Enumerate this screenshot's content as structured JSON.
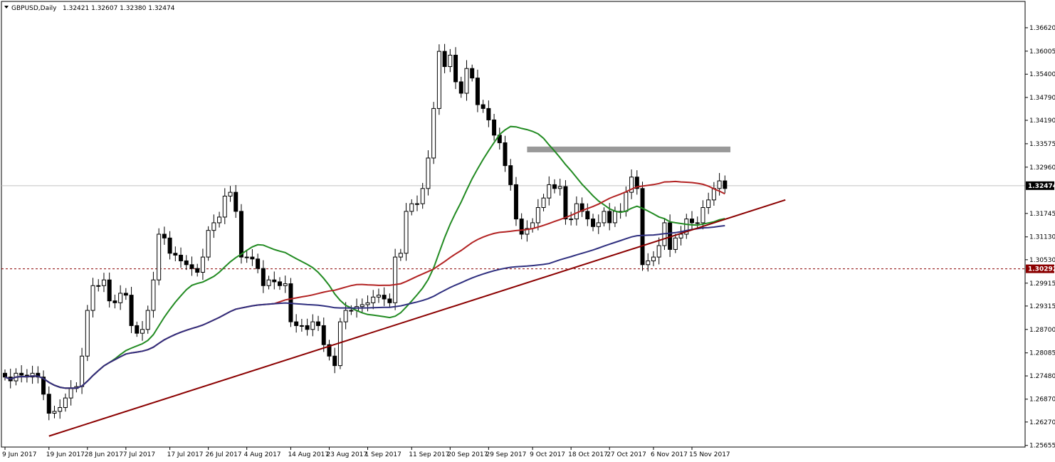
{
  "chart_data": {
    "type": "candlestick",
    "symbol_label": "GBPUSD,Daily",
    "ohlc_label": "1.32421 1.32607 1.32380 1.32474",
    "ylim": [
      1.2565,
      1.3675
    ],
    "grid": false,
    "y_ticks": [
      "1.36620",
      "1.36005",
      "1.35400",
      "1.34790",
      "1.34190",
      "1.33575",
      "1.32960",
      "1.32350",
      "1.31745",
      "1.31130",
      "1.30530",
      "1.29915",
      "1.29315",
      "1.28700",
      "1.28085",
      "1.27480",
      "1.26870",
      "1.26270",
      "1.25655"
    ],
    "x_ticks": [
      {
        "index": 0,
        "label": "9 Jun 2017"
      },
      {
        "index": 8,
        "label": "19 Jun 2017"
      },
      {
        "index": 15,
        "label": "28 Jun 2017"
      },
      {
        "index": 22,
        "label": "7 Jul 2017"
      },
      {
        "index": 30,
        "label": "17 Jul 2017"
      },
      {
        "index": 37,
        "label": "26 Jul 2017"
      },
      {
        "index": 44,
        "label": "4 Aug 2017"
      },
      {
        "index": 52,
        "label": "14 Aug 2017"
      },
      {
        "index": 59,
        "label": "23 Aug 2017"
      },
      {
        "index": 66,
        "label": "1 Sep 2017"
      },
      {
        "index": 74,
        "label": "11 Sep 2017"
      },
      {
        "index": 81,
        "label": "20 Sep 2017"
      },
      {
        "index": 88,
        "label": "29 Sep 2017"
      },
      {
        "index": 96,
        "label": "9 Oct 2017"
      },
      {
        "index": 103,
        "label": "18 Oct 2017"
      },
      {
        "index": 110,
        "label": "27 Oct 2017"
      },
      {
        "index": 118,
        "label": "6 Nov 2017"
      },
      {
        "index": 125,
        "label": "15 Nov 2017"
      }
    ],
    "closes": [
      1.2745,
      1.2735,
      1.2755,
      1.275,
      1.2745,
      1.2755,
      1.2745,
      1.27,
      1.265,
      1.2655,
      1.2665,
      1.269,
      1.2715,
      1.272,
      1.28,
      1.292,
      1.2985,
      1.2985,
      1.3,
      1.2945,
      1.294,
      1.2965,
      1.296,
      1.288,
      1.286,
      1.287,
      1.292,
      1.3,
      1.312,
      1.311,
      1.307,
      1.3065,
      1.305,
      1.304,
      1.303,
      1.302,
      1.306,
      1.313,
      1.315,
      1.3165,
      1.322,
      1.323,
      1.318,
      1.306,
      1.306,
      1.3055,
      1.303,
      1.2985,
      1.3,
      1.2995,
      1.2985,
      1.299,
      1.289,
      1.288,
      1.288,
      1.287,
      1.289,
      1.288,
      1.283,
      1.28,
      1.2775,
      1.289,
      1.292,
      1.292,
      1.293,
      1.2935,
      1.294,
      1.2955,
      1.296,
      1.295,
      1.294,
      1.306,
      1.307,
      1.318,
      1.32,
      1.32,
      1.324,
      1.332,
      1.345,
      1.36,
      1.356,
      1.359,
      1.352,
      1.349,
      1.3555,
      1.353,
      1.346,
      1.345,
      1.342,
      1.338,
      1.336,
      1.33,
      1.325,
      1.316,
      1.312,
      1.3135,
      1.315,
      1.319,
      1.3215,
      1.325,
      1.324,
      1.3245,
      1.316,
      1.316,
      1.32,
      1.318,
      1.316,
      1.314,
      1.315,
      1.318,
      1.315,
      1.318,
      1.318,
      1.323,
      1.327,
      1.324,
      1.304,
      1.305,
      1.306,
      1.309,
      1.315,
      1.308,
      1.311,
      1.312,
      1.316,
      1.315,
      1.315,
      1.319,
      1.321,
      1.324,
      1.326,
      1.324
    ],
    "overlays": [
      {
        "name": "",
        "color": "#228b22",
        "period": 20
      },
      {
        "name": "",
        "color": "#b22222",
        "period": 50
      },
      {
        "name": "",
        "color": "#2f2f7f",
        "period": 100
      },
      {
        "name": "",
        "color": "#8b0000",
        "type": "trendline",
        "points": [
          [
            8,
            1.259
          ],
          [
            142,
            1.321
          ]
        ]
      },
      {
        "name": "",
        "color": "#999999",
        "type": "resistance-zone",
        "x_range": [
          95,
          132
        ],
        "y_range": [
          1.3335,
          1.335
        ]
      }
    ],
    "current_price": "1.32474",
    "marked_level": "1.30292"
  }
}
